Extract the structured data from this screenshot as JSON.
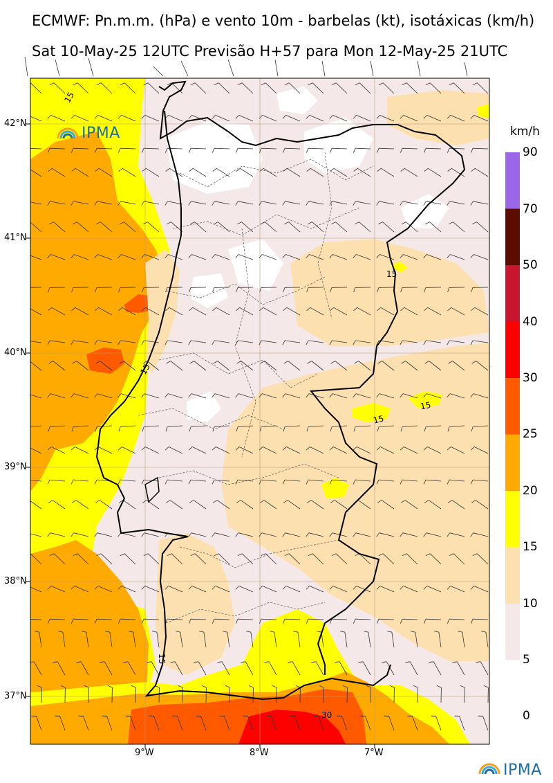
{
  "header": {
    "title_line1": "ECMWF: Pn.m.m. (hPa) e vento 10m - barbelas (kt), isotáxicas (km/h)",
    "title_line2": "Sat 10-May-25 12UTC Previsão H+57 para Mon 12-May-25 21UTC"
  },
  "colorbar": {
    "unit": "km/h",
    "bins": [
      {
        "from": 70,
        "to": 90,
        "color": "#9b66e8"
      },
      {
        "from": 50,
        "to": 70,
        "color": "#5c0c00"
      },
      {
        "from": 40,
        "to": 50,
        "color": "#c81530"
      },
      {
        "from": 30,
        "to": 40,
        "color": "#ff0000"
      },
      {
        "from": 25,
        "to": 30,
        "color": "#ff5a00"
      },
      {
        "from": 20,
        "to": 25,
        "color": "#ffaa00"
      },
      {
        "from": 15,
        "to": 20,
        "color": "#ffff00"
      },
      {
        "from": 10,
        "to": 15,
        "color": "#fde0b0"
      },
      {
        "from": 5,
        "to": 10,
        "color": "#f5e8e8"
      }
    ],
    "labels": [
      "90",
      "70",
      "50",
      "40",
      "30",
      "25",
      "20",
      "15",
      "10",
      "5",
      "0"
    ]
  },
  "axes": {
    "lat_labels": [
      "42°N",
      "41°N",
      "40°N",
      "39°N",
      "38°N",
      "37°N"
    ],
    "lon_labels": [
      "9°W",
      "8°W",
      "7°W"
    ]
  },
  "contour_labels": [
    "15",
    "15",
    "15",
    "15",
    "15",
    "15",
    "30"
  ],
  "logos": {
    "text": "IPMA"
  },
  "icons": [
    "ipma-logo-icon"
  ]
}
